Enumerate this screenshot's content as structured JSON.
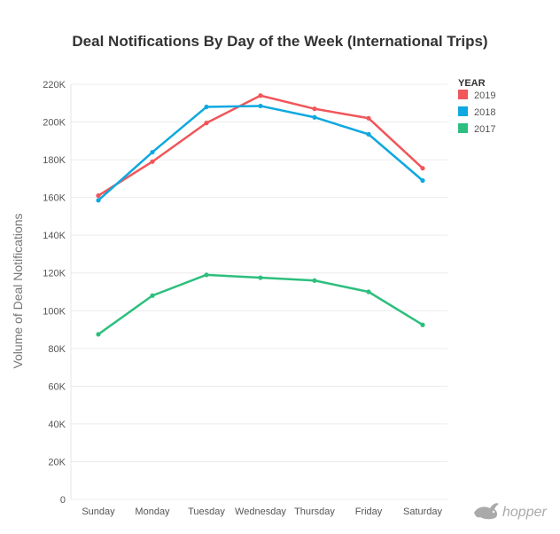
{
  "chart_data": {
    "type": "line",
    "title": "Deal Notifications By Day of the Week (International Trips)",
    "xlabel": "",
    "ylabel": "Volume of Deal Notifications",
    "categories": [
      "Sunday",
      "Monday",
      "Tuesday",
      "Wednesday",
      "Thursday",
      "Friday",
      "Saturday"
    ],
    "ylim": [
      0,
      220000
    ],
    "yticks": [
      {
        "value": 0,
        "label": "0"
      },
      {
        "value": 20000,
        "label": "20K"
      },
      {
        "value": 40000,
        "label": "40K"
      },
      {
        "value": 60000,
        "label": "60K"
      },
      {
        "value": 80000,
        "label": "80K"
      },
      {
        "value": 100000,
        "label": "100K"
      },
      {
        "value": 120000,
        "label": "120K"
      },
      {
        "value": 140000,
        "label": "140K"
      },
      {
        "value": 160000,
        "label": "160K"
      },
      {
        "value": 180000,
        "label": "180K"
      },
      {
        "value": 200000,
        "label": "200K"
      },
      {
        "value": 220000,
        "label": "220K"
      }
    ],
    "grid": true,
    "legend_title": "YEAR",
    "legend_position": "top-right",
    "series": [
      {
        "name": "2019",
        "color": "#f0565a",
        "values": [
          161000,
          179000,
          199500,
          214000,
          207000,
          202000,
          175500
        ]
      },
      {
        "name": "2018",
        "color": "#0fa8e0",
        "values": [
          158500,
          184000,
          208000,
          208500,
          202500,
          193500,
          169000
        ]
      },
      {
        "name": "2017",
        "color": "#2dbf7d",
        "values": [
          87500,
          108000,
          119000,
          117500,
          116000,
          110000,
          92500
        ]
      }
    ]
  },
  "brand": {
    "name": "hopper",
    "icon": "hopper-bunny-icon"
  }
}
